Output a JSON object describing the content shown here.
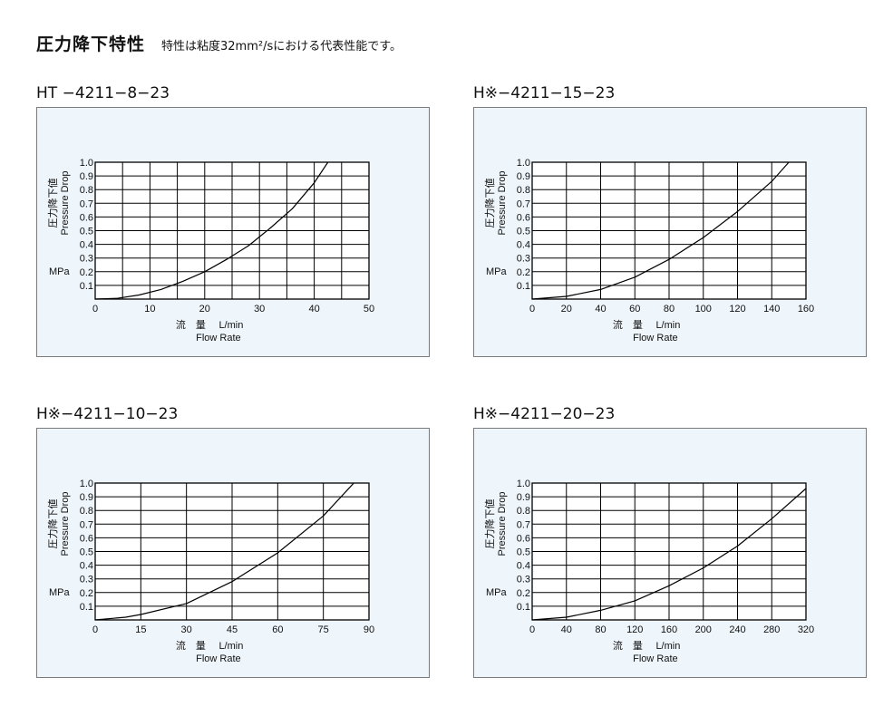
{
  "header": {
    "title": "圧力降下特性",
    "subtitle": "特性は粘度32mm²/sにおける代表性能です。"
  },
  "chart_data": [
    {
      "type": "line",
      "title": "HT −4211−8−23",
      "ylabel_jp": "圧力降下値",
      "ylabel": "Pressure Drop",
      "yunit": "MPa",
      "xlabel_jp": "流　量",
      "xunit": "L/min",
      "xlabel": "Flow Rate",
      "xlim": [
        0,
        50
      ],
      "ylim": [
        0,
        1.0
      ],
      "xticks": [
        "0",
        "10",
        "20",
        "30",
        "40",
        "50"
      ],
      "yticks": [
        "0.1",
        "0.2",
        "0.3",
        "0.4",
        "0.5",
        "0.6",
        "0.7",
        "0.8",
        "0.9",
        "1.0"
      ],
      "grid": true,
      "x_minor_divisions": 2,
      "series": [
        {
          "x": [
            0,
            4,
            8,
            12,
            16,
            20,
            24,
            28,
            32,
            36,
            40,
            42.5
          ],
          "y": [
            0,
            0.005,
            0.03,
            0.07,
            0.13,
            0.2,
            0.29,
            0.39,
            0.52,
            0.66,
            0.85,
            1.0
          ]
        }
      ]
    },
    {
      "type": "line",
      "title": "H※−4211−15−23",
      "ylabel_jp": "圧力降下値",
      "ylabel": "Pressure Drop",
      "yunit": "MPa",
      "xlabel_jp": "流　量",
      "xunit": "L/min",
      "xlabel": "Flow Rate",
      "xlim": [
        0,
        160
      ],
      "ylim": [
        0,
        1.0
      ],
      "xticks": [
        "0",
        "20",
        "40",
        "60",
        "80",
        "100",
        "120",
        "140",
        "160"
      ],
      "yticks": [
        "0.1",
        "0.2",
        "0.3",
        "0.4",
        "0.5",
        "0.6",
        "0.7",
        "0.8",
        "0.9",
        "1.0"
      ],
      "grid": true,
      "x_minor_divisions": 1,
      "series": [
        {
          "x": [
            0,
            20,
            40,
            60,
            80,
            100,
            120,
            140,
            150
          ],
          "y": [
            0,
            0.02,
            0.07,
            0.16,
            0.29,
            0.45,
            0.64,
            0.86,
            1.0
          ]
        }
      ]
    },
    {
      "type": "line",
      "title": "H※−4211−10−23",
      "ylabel_jp": "圧力降下値",
      "ylabel": "Pressure Drop",
      "yunit": "MPa",
      "xlabel_jp": "流　量",
      "xunit": "L/min",
      "xlabel": "Flow Rate",
      "xlim": [
        0,
        90
      ],
      "ylim": [
        0,
        1.0
      ],
      "xticks": [
        "0",
        "15",
        "30",
        "45",
        "60",
        "75",
        "90"
      ],
      "yticks": [
        "0.1",
        "0.2",
        "0.3",
        "0.4",
        "0.5",
        "0.6",
        "0.7",
        "0.8",
        "0.9",
        "1.0"
      ],
      "grid": true,
      "x_minor_divisions": 1,
      "series": [
        {
          "x": [
            0,
            10,
            15,
            30,
            45,
            60,
            75,
            85
          ],
          "y": [
            0,
            0.02,
            0.04,
            0.12,
            0.28,
            0.49,
            0.76,
            1.0
          ]
        }
      ]
    },
    {
      "type": "line",
      "title": "H※−4211−20−23",
      "ylabel_jp": "圧力降下値",
      "ylabel": "Pressure Drop",
      "yunit": "MPa",
      "xlabel_jp": "流　量",
      "xunit": "L/min",
      "xlabel": "Flow Rate",
      "xlim": [
        0,
        320
      ],
      "ylim": [
        0,
        1.0
      ],
      "xticks": [
        "0",
        "40",
        "80",
        "120",
        "160",
        "200",
        "240",
        "280",
        "320"
      ],
      "yticks": [
        "0.1",
        "0.2",
        "0.3",
        "0.4",
        "0.5",
        "0.6",
        "0.7",
        "0.8",
        "0.9",
        "1.0"
      ],
      "grid": true,
      "x_minor_divisions": 1,
      "series": [
        {
          "x": [
            0,
            40,
            80,
            120,
            160,
            200,
            240,
            280,
            320
          ],
          "y": [
            0,
            0.02,
            0.07,
            0.14,
            0.25,
            0.38,
            0.54,
            0.74,
            0.96
          ]
        }
      ]
    }
  ]
}
